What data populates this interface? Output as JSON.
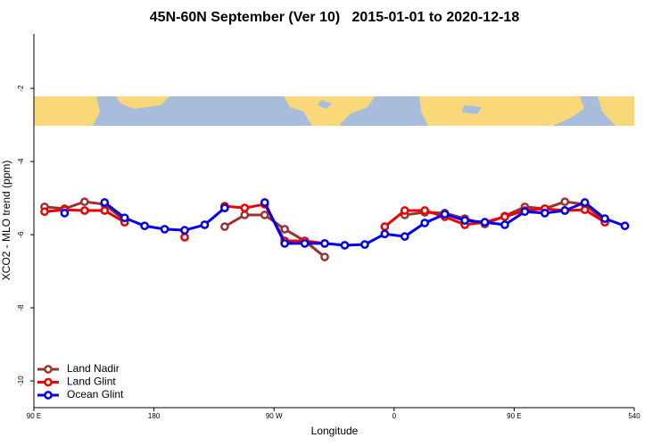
{
  "chart_data": {
    "type": "line",
    "title": "45N-60N September (Ver 10)   2015-01-01 to 2020-12-18",
    "x_label": "Longitude",
    "y_label": "XCO2 - MLO trend (ppm)",
    "x": [
      98,
      113,
      128,
      143,
      158,
      173,
      188,
      203,
      218,
      233,
      248,
      263,
      278,
      293,
      308,
      323,
      338,
      353,
      368,
      383,
      398,
      413,
      428,
      443,
      458,
      473,
      488,
      503,
      518,
      533
    ],
    "xlim": [
      90,
      540
    ],
    "xticks": [
      {
        "value": 90,
        "label": "90 E"
      },
      180,
      {
        "value": 270,
        "label": "90 W"
      },
      {
        "value": 360,
        "label": "0"
      },
      {
        "value": 450,
        "label": "90 E"
      },
      540
    ],
    "ylim": [
      -10.73,
      -0.51
    ],
    "yticks": [
      -10,
      -8,
      -6,
      -4,
      -2
    ],
    "legend": "bottom-left",
    "series": [
      {
        "name": "Land Nadir",
        "color": "#993333",
        "values": [
          -5.24,
          -5.29,
          -5.1,
          -5.17,
          -5.61,
          null,
          null,
          null,
          null,
          -5.78,
          -5.46,
          -5.46,
          -5.85,
          -6.17,
          -6.61,
          null,
          null,
          null,
          -5.46,
          -5.39,
          -5.41,
          -5.56,
          -5.71,
          -5.49,
          -5.24,
          -5.29,
          -5.1,
          -5.17,
          -5.63,
          null
        ]
      },
      {
        "name": "Land Glint",
        "color": "#ee0000",
        "values": [
          -5.37,
          -5.32,
          -5.34,
          -5.34,
          -5.66,
          null,
          null,
          -6.07,
          null,
          -5.22,
          -5.27,
          -5.17,
          -6.17,
          -6.17,
          -6.24,
          null,
          null,
          -5.78,
          -5.34,
          -5.34,
          -5.51,
          -5.73,
          -5.66,
          -5.51,
          -5.34,
          -5.29,
          -5.34,
          -5.32,
          -5.66,
          null
        ]
      },
      {
        "name": "Ocean Glint",
        "color": "#0000ee",
        "values": [
          null,
          -5.41,
          null,
          -5.12,
          -5.54,
          -5.76,
          -5.85,
          -5.88,
          -5.73,
          -5.27,
          null,
          -5.12,
          -6.24,
          -6.24,
          -6.24,
          -6.29,
          -6.27,
          -5.98,
          -6.05,
          -5.68,
          -5.44,
          -5.61,
          -5.66,
          -5.73,
          -5.37,
          -5.41,
          -5.34,
          -5.12,
          -5.56,
          -5.76
        ]
      }
    ]
  }
}
